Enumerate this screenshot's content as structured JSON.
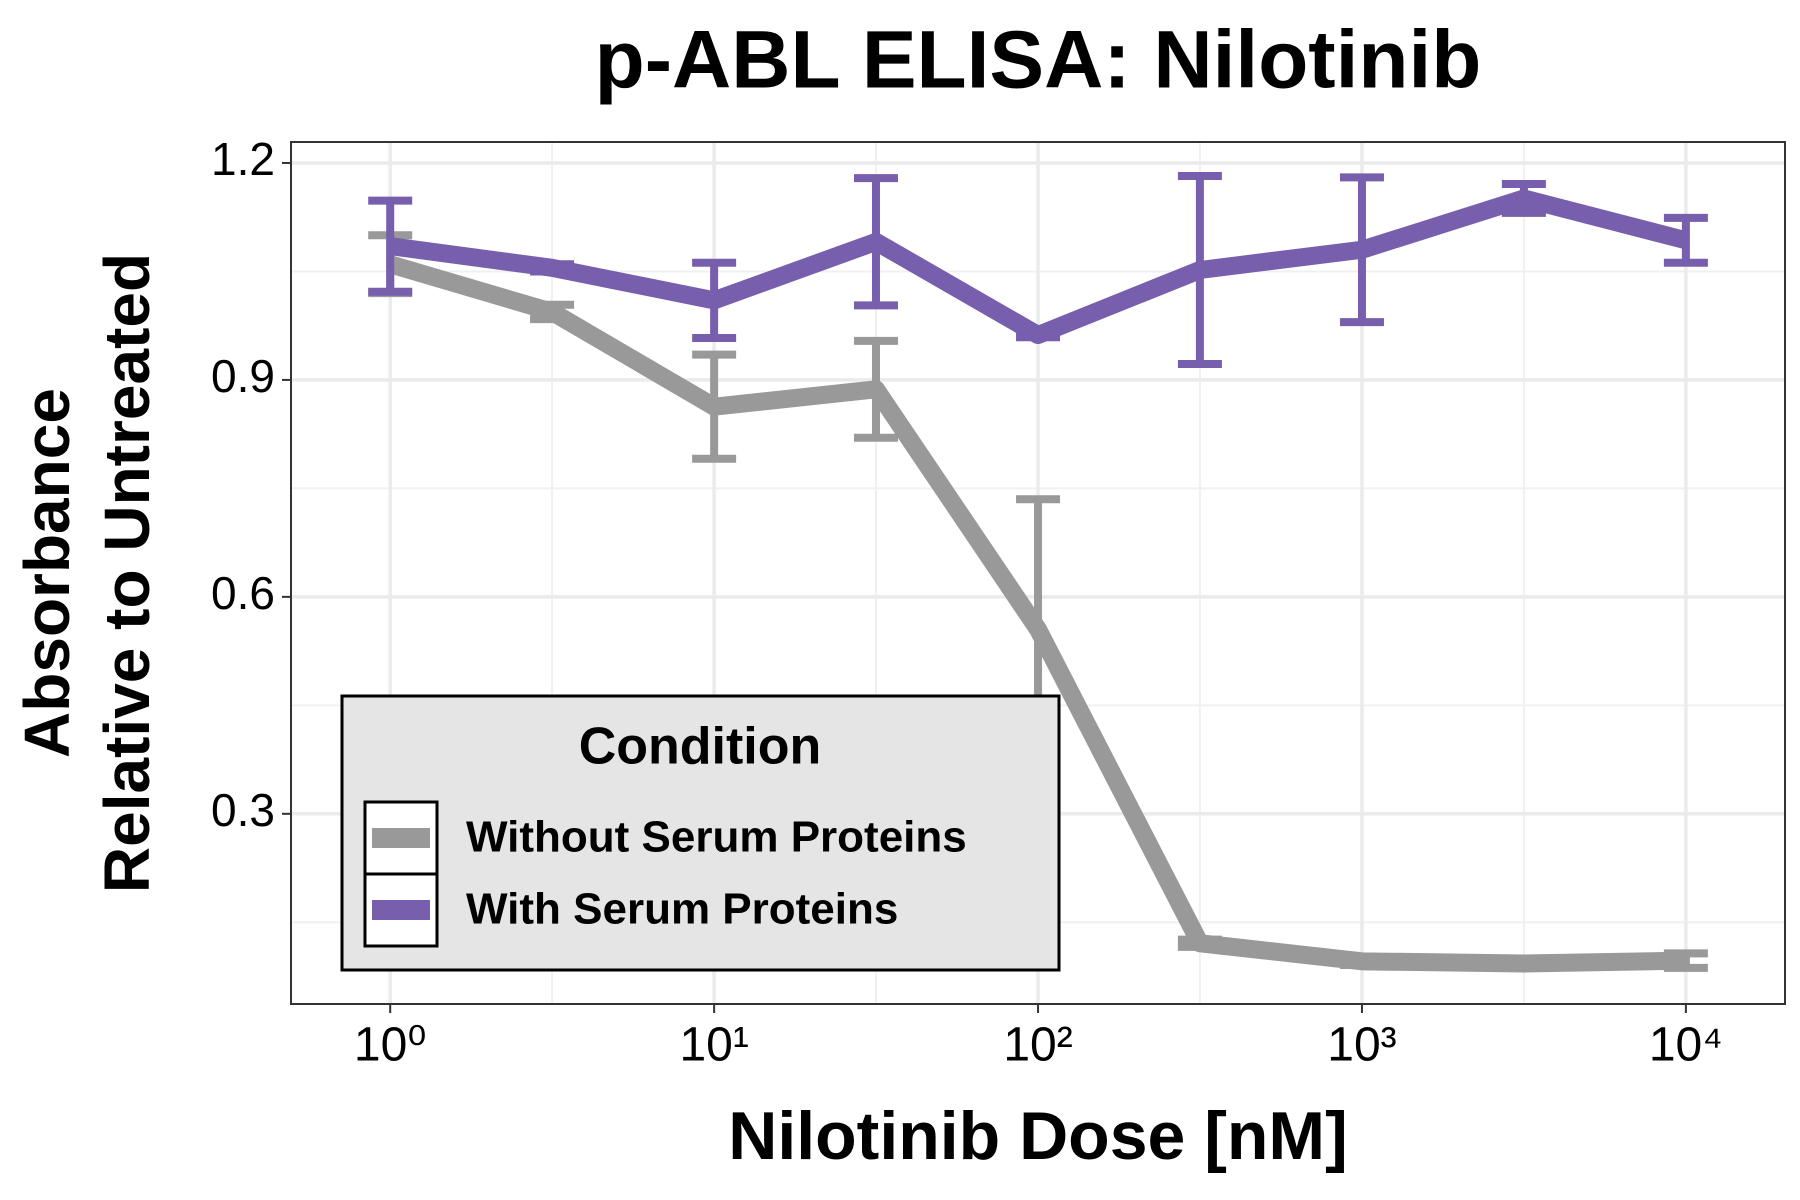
{
  "chart_data": {
    "type": "line",
    "title": "p-ABL ELISA: Nilotinib",
    "x_label": "Nilotinib Dose [nM]",
    "y_label": [
      "Absorbance",
      "Relative to Untreated"
    ],
    "x": [
      1,
      3.16,
      10,
      31.6,
      100,
      316,
      1000,
      3162,
      10000
    ],
    "xscale": "log",
    "xlim": [
      0.494,
      20230
    ],
    "xticks": [
      {
        "value": 1,
        "label": "10⁰"
      },
      {
        "value": 10,
        "label": "10¹"
      },
      {
        "value": 100,
        "label": "10²"
      },
      {
        "value": 1000,
        "label": "10³"
      },
      {
        "value": 10000,
        "label": "10⁴"
      }
    ],
    "xminor_ticks": [
      3.16,
      31.6,
      316,
      3162
    ],
    "ylim": [
      0.037,
      1.229
    ],
    "yticks": [
      0.3,
      0.6,
      0.9,
      1.2
    ],
    "yminor_ticks": [
      0.15,
      0.45,
      0.75,
      1.05
    ],
    "grid": true,
    "legend_title": "Condition",
    "legend_position": "bottom-left",
    "series": [
      {
        "name": "Without Serum Proteins",
        "color": "#999999",
        "values": [
          1.06,
          0.994,
          0.863,
          0.887,
          0.555,
          0.121,
          0.096,
          0.093,
          0.097
        ],
        "errors": [
          0.04,
          0.01,
          0.072,
          0.067,
          0.18,
          0.005,
          0.005,
          0.003,
          0.01
        ]
      },
      {
        "name": "With Serum Proteins",
        "color": "#775fad",
        "values": [
          1.085,
          1.055,
          1.01,
          1.091,
          0.962,
          1.052,
          1.08,
          1.151,
          1.093
        ],
        "errors": [
          0.063,
          0.005,
          0.052,
          0.088,
          0.003,
          0.13,
          0.1,
          0.02,
          0.031
        ]
      }
    ]
  }
}
